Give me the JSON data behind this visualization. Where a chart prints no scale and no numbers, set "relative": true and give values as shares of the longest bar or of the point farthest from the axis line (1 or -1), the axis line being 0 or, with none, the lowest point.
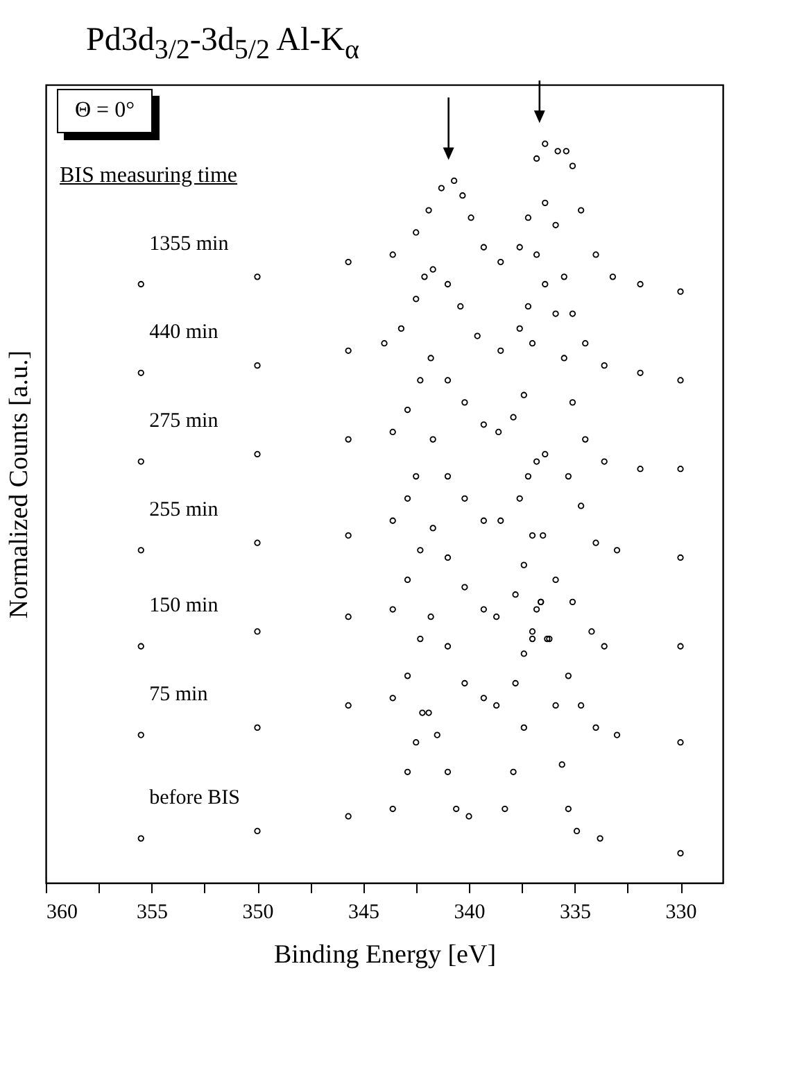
{
  "chart_data": {
    "type": "scatter",
    "title": "Pd3d$_{3/2}$-3d$_{5/2}$  Al-K$_{α}$",
    "xlabel": "Binding Energy [eV]",
    "ylabel": "Normalized Counts [a.u.]",
    "annotations": [
      "Θ = 0°",
      "BIS measuring time"
    ],
    "relative": true,
    "marker": "circle",
    "xlim": [
      360,
      328
    ],
    "xticks": [
      360,
      {
        "value": 357.5,
        "label": null
      },
      355,
      {
        "value": 352.5,
        "label": null
      },
      350,
      {
        "value": 347.5,
        "label": null
      },
      345,
      {
        "value": 342.5,
        "label": null
      },
      340,
      {
        "value": 337.5,
        "label": null
      },
      335,
      {
        "value": 332.5,
        "label": null
      },
      330
    ],
    "series": [
      {
        "name": "1355 min",
        "color": "#000000",
        "x": [
          355.5,
          350,
          345.7,
          343.6,
          342.5,
          341.9,
          341.3,
          340.7,
          340.3,
          339.9,
          339.3,
          338.5,
          337.6,
          337.2,
          336.8,
          336.4,
          335.8,
          335.4,
          335.1,
          334.7,
          334,
          333.2,
          331.9,
          330
        ],
        "values": [
          0.81,
          0.82,
          0.84,
          0.85,
          0.88,
          0.91,
          0.94,
          0.95,
          0.93,
          0.9,
          0.86,
          0.84,
          0.86,
          0.9,
          0.98,
          1.0,
          0.99,
          0.99,
          0.97,
          0.91,
          0.85,
          0.82,
          0.81,
          0.8
        ]
      },
      {
        "name": "440 min",
        "color": "#000000",
        "x": [
          355.5,
          350,
          345.7,
          344,
          343.2,
          342.5,
          342.1,
          341.7,
          341,
          340.4,
          339.6,
          338.5,
          337.6,
          337.2,
          336.8,
          336.4,
          335.9,
          335.5,
          335.1,
          334.5,
          333.6,
          331.9,
          330
        ],
        "values": [
          0.69,
          0.7,
          0.72,
          0.73,
          0.75,
          0.79,
          0.82,
          0.83,
          0.81,
          0.78,
          0.74,
          0.72,
          0.75,
          0.78,
          0.85,
          0.92,
          0.89,
          0.82,
          0.77,
          0.73,
          0.7,
          0.69,
          0.68
        ]
      },
      {
        "name": "275 min",
        "color": "#000000",
        "x": [
          355.5,
          350,
          345.7,
          343.6,
          342.9,
          342.3,
          341.8,
          341,
          340.2,
          339.3,
          338.6,
          337.9,
          337.4,
          337,
          336.4,
          335.9,
          335.5,
          335.1,
          334.5,
          333.6,
          331.9,
          330
        ],
        "values": [
          0.57,
          0.58,
          0.6,
          0.61,
          0.64,
          0.68,
          0.71,
          0.68,
          0.65,
          0.62,
          0.61,
          0.63,
          0.66,
          0.73,
          0.81,
          0.77,
          0.71,
          0.65,
          0.6,
          0.57,
          0.56,
          0.56
        ]
      },
      {
        "name": "255 min",
        "color": "#000000",
        "x": [
          355.5,
          350,
          345.7,
          343.6,
          342.9,
          342.5,
          341.7,
          341,
          340.2,
          339.3,
          338.5,
          337.6,
          337.2,
          336.8,
          336.4,
          335.3,
          334.7,
          334,
          333,
          330
        ],
        "values": [
          0.45,
          0.46,
          0.47,
          0.49,
          0.52,
          0.55,
          0.6,
          0.55,
          0.52,
          0.49,
          0.49,
          0.52,
          0.55,
          0.57,
          0.58,
          0.55,
          0.51,
          0.46,
          0.45,
          0.44
        ]
      },
      {
        "name": "150 min",
        "color": "#000000",
        "x": [
          355.5,
          350,
          345.7,
          343.6,
          342.9,
          342.3,
          341.7,
          341,
          340.2,
          339.3,
          338.7,
          337.8,
          337.4,
          337,
          336.5,
          335.9,
          335.1,
          334.2,
          333.6,
          330
        ],
        "values": [
          0.32,
          0.34,
          0.36,
          0.37,
          0.41,
          0.45,
          0.48,
          0.44,
          0.4,
          0.37,
          0.36,
          0.39,
          0.43,
          0.47,
          0.47,
          0.41,
          0.38,
          0.34,
          0.32,
          0.32
        ]
      },
      {
        "name": "75 min",
        "color": "#000000",
        "x": [
          355.5,
          350,
          345.7,
          343.6,
          342.9,
          342.3,
          341.8,
          341,
          340.2,
          339.3,
          338.7,
          337.8,
          337.4,
          337,
          336.6,
          336.2,
          335.3,
          334.7,
          334,
          333,
          330
        ],
        "values": [
          0.2,
          0.21,
          0.24,
          0.25,
          0.28,
          0.33,
          0.36,
          0.32,
          0.27,
          0.25,
          0.24,
          0.27,
          0.31,
          0.34,
          0.38,
          0.33,
          0.28,
          0.24,
          0.21,
          0.2,
          0.19
        ]
      },
      {
        "name": "before BIS",
        "color": "#000000",
        "x": [
          355.5,
          350,
          345.7,
          343.6,
          342.9,
          342.5,
          342.2,
          341.9,
          341.5,
          341,
          340.6,
          340,
          338.3,
          337.9,
          337.4,
          337,
          336.8,
          336.6,
          336.3,
          335.9,
          335.6,
          335.3,
          334.9,
          333.8,
          330
        ],
        "values": [
          0.06,
          0.07,
          0.09,
          0.1,
          0.15,
          0.19,
          0.23,
          0.23,
          0.2,
          0.15,
          0.1,
          0.09,
          0.1,
          0.15,
          0.21,
          0.33,
          0.37,
          0.38,
          0.33,
          0.24,
          0.16,
          0.1,
          0.07,
          0.06,
          0.04
        ]
      }
    ]
  }
}
